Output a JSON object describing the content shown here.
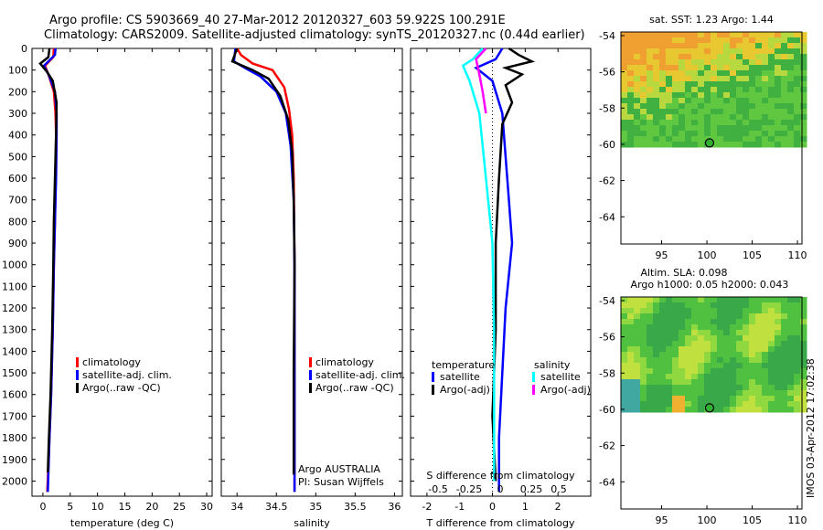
{
  "header": {
    "line1": "Argo profile: CS 5903669_40 27-Mar-2012 20120327_603 59.922S 100.291E",
    "line2": "Climatology: CARS2009. Satellite-adjusted climatology: synTS_20120327.nc (0.44d earlier)"
  },
  "watermark": "IMOS 03-Apr-2012 17:02:38",
  "colors": {
    "climatology": "#ff0000",
    "satellite": "#0000ff",
    "argo": "#000000",
    "satellite_s": "#00ffff",
    "argo_s": "#ff00ff"
  },
  "chart_data": [
    {
      "type": "line",
      "xlabel": "temperature (deg C)",
      "ylabel": "",
      "xlim": [
        -2,
        31
      ],
      "ylim": [
        2070,
        0
      ],
      "xticks": [
        0,
        5,
        10,
        15,
        20,
        25,
        30
      ],
      "yticks": [
        0,
        100,
        200,
        300,
        400,
        500,
        600,
        700,
        800,
        900,
        1000,
        1100,
        1200,
        1300,
        1400,
        1500,
        1600,
        1700,
        1800,
        1900,
        2000
      ],
      "legend": [
        "climatology",
        "satellite-adj. clim.",
        "Argo(..raw -QC)"
      ],
      "series": [
        {
          "name": "climatology",
          "color": "#ff0000",
          "points": [
            [
              2.0,
              0
            ],
            [
              1.9,
              40
            ],
            [
              0.4,
              80
            ],
            [
              1.0,
              120
            ],
            [
              2.0,
              200
            ],
            [
              2.3,
              300
            ],
            [
              2.4,
              400
            ],
            [
              2.3,
              600
            ],
            [
              2.2,
              800
            ],
            [
              2.0,
              1000
            ],
            [
              1.8,
              1300
            ],
            [
              1.5,
              1600
            ],
            [
              1.2,
              1800
            ],
            [
              0.8,
              2050
            ]
          ]
        },
        {
          "name": "satellite-adj. clim.",
          "color": "#0000ff",
          "points": [
            [
              2.3,
              0
            ],
            [
              2.2,
              30
            ],
            [
              0.2,
              80
            ],
            [
              1.2,
              130
            ],
            [
              2.2,
              200
            ],
            [
              2.5,
              300
            ],
            [
              2.5,
              400
            ],
            [
              2.4,
              600
            ],
            [
              2.2,
              800
            ],
            [
              2.0,
              1000
            ],
            [
              1.8,
              1300
            ],
            [
              1.5,
              1600
            ],
            [
              1.2,
              1800
            ],
            [
              0.9,
              2050
            ]
          ]
        },
        {
          "name": "Argo(..raw -QC)",
          "color": "#000000",
          "points": [
            [
              1.2,
              0
            ],
            [
              1.0,
              40
            ],
            [
              -0.5,
              70
            ],
            [
              0.8,
              110
            ],
            [
              1.8,
              150
            ],
            [
              2.5,
              250
            ],
            [
              2.4,
              400
            ],
            [
              2.2,
              600
            ],
            [
              2.0,
              800
            ],
            [
              1.9,
              1000
            ],
            [
              1.7,
              1300
            ],
            [
              1.4,
              1600
            ],
            [
              1.1,
              1800
            ],
            [
              0.9,
              1960
            ]
          ]
        }
      ]
    },
    {
      "type": "line",
      "xlabel": "salinity",
      "xlim": [
        33.8,
        36.1
      ],
      "ylim": [
        2070,
        0
      ],
      "xticks": [
        34,
        34.5,
        35,
        35.5,
        36
      ],
      "legend": [
        "climatology",
        "satellite-adj. clim.",
        "Argo(..raw -QC)"
      ],
      "annotation": [
        "Argo AUSTRALIA",
        "PI: Susan Wijffels"
      ],
      "series": [
        {
          "name": "climatology",
          "color": "#ff0000",
          "points": [
            [
              34.0,
              0
            ],
            [
              34.05,
              30
            ],
            [
              34.2,
              70
            ],
            [
              34.45,
              100
            ],
            [
              34.6,
              180
            ],
            [
              34.66,
              280
            ],
            [
              34.7,
              400
            ],
            [
              34.72,
              600
            ],
            [
              34.73,
              1000
            ],
            [
              34.73,
              1500
            ],
            [
              34.73,
              2050
            ]
          ]
        },
        {
          "name": "satellite-adj. clim.",
          "color": "#0000ff",
          "points": [
            [
              33.98,
              0
            ],
            [
              33.96,
              60
            ],
            [
              34.1,
              90
            ],
            [
              34.3,
              130
            ],
            [
              34.5,
              200
            ],
            [
              34.62,
              300
            ],
            [
              34.68,
              450
            ],
            [
              34.72,
              700
            ],
            [
              34.73,
              1000
            ],
            [
              34.73,
              1500
            ],
            [
              34.73,
              2050
            ]
          ]
        },
        {
          "name": "Argo(..raw -QC)",
          "color": "#000000",
          "points": [
            [
              34.0,
              0
            ],
            [
              33.94,
              60
            ],
            [
              34.2,
              100
            ],
            [
              34.4,
              140
            ],
            [
              34.55,
              220
            ],
            [
              34.65,
              330
            ],
            [
              34.7,
              480
            ],
            [
              34.72,
              700
            ],
            [
              34.73,
              1000
            ],
            [
              34.72,
              1500
            ],
            [
              34.72,
              1970
            ]
          ]
        }
      ]
    },
    {
      "type": "line",
      "xlabel": "T difference from climatology",
      "top_label": "S difference from climatology",
      "xlim": [
        -2.5,
        3.0
      ],
      "ylim": [
        2070,
        0
      ],
      "xticks": [
        -2,
        -1,
        0,
        1,
        2
      ],
      "top_ticks": [
        "-0.5",
        "-0.25",
        "0",
        "0.25",
        "0.5"
      ],
      "legend_groups": [
        {
          "title": "temperature",
          "items": [
            "satellite",
            "Argo(-adj)"
          ]
        },
        {
          "title": "salinity",
          "items": [
            "satellite",
            "Argo(-adj)"
          ]
        }
      ],
      "series": [
        {
          "name": "satellite",
          "group": "temperature",
          "color": "#0000ff",
          "points": [
            [
              0.3,
              0
            ],
            [
              0.1,
              50
            ],
            [
              -0.5,
              90
            ],
            [
              0.0,
              150
            ],
            [
              0.3,
              300
            ],
            [
              0.4,
              500
            ],
            [
              0.5,
              700
            ],
            [
              0.6,
              900
            ],
            [
              0.4,
              1200
            ],
            [
              0.3,
              1500
            ],
            [
              0.2,
              1800
            ],
            [
              0.2,
              2050
            ]
          ]
        },
        {
          "name": "Argo(-adj)",
          "group": "temperature",
          "color": "#000000",
          "points": [
            [
              0.5,
              0
            ],
            [
              0.8,
              30
            ],
            [
              1.2,
              60
            ],
            [
              0.4,
              90
            ],
            [
              0.9,
              120
            ],
            [
              0.4,
              170
            ],
            [
              0.6,
              250
            ],
            [
              0.3,
              350
            ],
            [
              0.2,
              600
            ],
            [
              0.1,
              900
            ],
            [
              0.1,
              1300
            ],
            [
              0.0,
              1700
            ],
            [
              0.1,
              2000
            ]
          ]
        },
        {
          "name": "satellite",
          "group": "salinity",
          "color": "#00ffff",
          "points": [
            [
              -0.3,
              0
            ],
            [
              -0.6,
              50
            ],
            [
              -0.9,
              80
            ],
            [
              -0.7,
              150
            ],
            [
              -0.4,
              300
            ],
            [
              -0.2,
              600
            ],
            [
              0.0,
              900
            ],
            [
              0.05,
              1300
            ],
            [
              0.05,
              2000
            ]
          ]
        },
        {
          "name": "Argo(-adj)",
          "group": "salinity",
          "color": "#ff00ff",
          "points": [
            [
              -0.2,
              0
            ],
            [
              -0.5,
              50
            ],
            [
              -0.4,
              120
            ],
            [
              -0.3,
              200
            ],
            [
              -0.2,
              300
            ]
          ]
        }
      ]
    },
    {
      "type": "heatmap",
      "title": "sat. SST: 1.23 Argo: 1.44",
      "xlim": [
        90.5,
        110.5
      ],
      "ylim": [
        -65.5,
        -53.8
      ],
      "xticks": [
        95,
        100,
        105,
        110
      ],
      "yticks": [
        -54,
        -56,
        -58,
        -60,
        -62,
        -64
      ],
      "marker": {
        "lon": 100.291,
        "lat": -59.922
      },
      "data_extent_lat": [
        -60.1,
        -53.8
      ]
    },
    {
      "type": "heatmap",
      "title_lines": [
        "Altim. SLA: 0.098",
        "Argo h1000: 0.05 h2000: 0.043"
      ],
      "xlim": [
        90.5,
        110.5
      ],
      "ylim": [
        -65.5,
        -53.8
      ],
      "xticks": [
        95,
        100,
        105,
        110
      ],
      "yticks": [
        -54,
        -56,
        -58,
        -60,
        -62,
        -64
      ],
      "marker": {
        "lon": 100.291,
        "lat": -59.922
      },
      "data_extent_lat": [
        -60.1,
        -53.8
      ]
    }
  ]
}
